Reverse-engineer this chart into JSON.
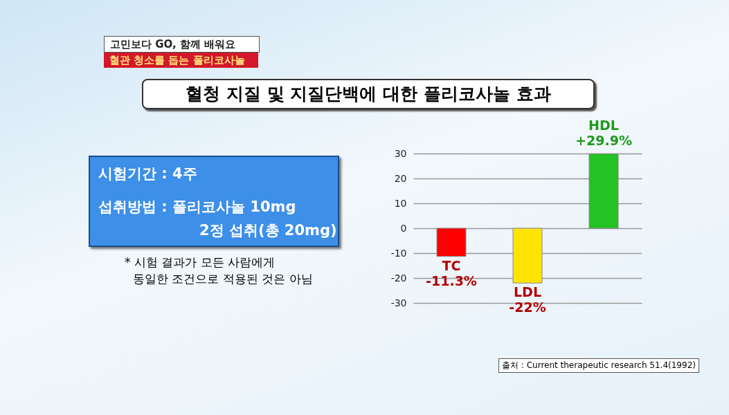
{
  "chart_data": {
    "type": "bar",
    "title": "혈청 지질 및 지질단백에 대한 플리코사놀 효과",
    "subtitle": "고민보다 GO, 함께 배워요",
    "categories": [
      "TC",
      "LDL",
      "HDL"
    ],
    "values": [
      -11.3,
      -22,
      29.9
    ],
    "colors": [
      "#ff0000",
      "#ffe400",
      "#22c322"
    ],
    "value_labels": [
      "-11.3%",
      "-22%",
      "+29.9%"
    ],
    "ylim": [
      -30,
      30
    ],
    "yticks": [
      -30,
      -20,
      -10,
      0,
      10,
      20,
      30
    ],
    "grid": "y",
    "tick_labels": "y",
    "annotations": [
      "혈관 청소를 돕는 폴리코사놀",
      "시험기간 : 4주",
      "섭취방법 : 폴리코사놀 10mg",
      "2정 섭취(총 20mg)",
      "* 시험 결과가 모든 사람에게",
      "동일한 조건으로 적용된 것은 아님",
      "출처 : Current therapeutic research 51.4(1992)"
    ]
  }
}
